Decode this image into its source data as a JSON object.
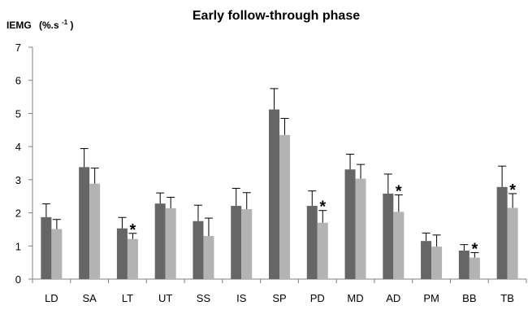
{
  "chart_data": {
    "type": "bar",
    "title": "Early follow-through phase",
    "ylabel": "IEMG",
    "ylabel_unit": "(%.s",
    "ylabel_unit_sup": "-1",
    "ylabel_unit_close": ")",
    "ylim": [
      0,
      7
    ],
    "yticks": [
      "0",
      "1",
      "2",
      "3",
      "4",
      "5",
      "6",
      "7"
    ],
    "grid": false,
    "legend": "none",
    "categories": [
      "LD",
      "SA",
      "LT",
      "UT",
      "SS",
      "IS",
      "SP",
      "PD",
      "MD",
      "AD",
      "PM",
      "BB",
      "TB"
    ],
    "series": [
      {
        "color": "#666666",
        "values": [
          1.87,
          3.38,
          1.53,
          2.28,
          1.75,
          2.21,
          5.12,
          2.21,
          3.31,
          2.58,
          1.15,
          0.86,
          2.78
        ],
        "errors": [
          0.4,
          0.56,
          0.33,
          0.32,
          0.48,
          0.53,
          0.63,
          0.45,
          0.46,
          0.59,
          0.24,
          0.18,
          0.63
        ]
      },
      {
        "color": "#b3b3b3",
        "values": [
          1.51,
          2.88,
          1.21,
          2.14,
          1.3,
          2.11,
          4.35,
          1.7,
          3.03,
          2.03,
          0.98,
          0.65,
          2.15
        ],
        "errors": [
          0.29,
          0.47,
          0.17,
          0.33,
          0.54,
          0.5,
          0.5,
          0.37,
          0.43,
          0.51,
          0.35,
          0.15,
          0.43
        ]
      }
    ],
    "annotations": [
      {
        "category": "LT",
        "text": "*"
      },
      {
        "category": "PD",
        "text": "*"
      },
      {
        "category": "AD",
        "text": "*"
      },
      {
        "category": "BB",
        "text": "*"
      },
      {
        "category": "TB",
        "text": "*"
      }
    ]
  }
}
